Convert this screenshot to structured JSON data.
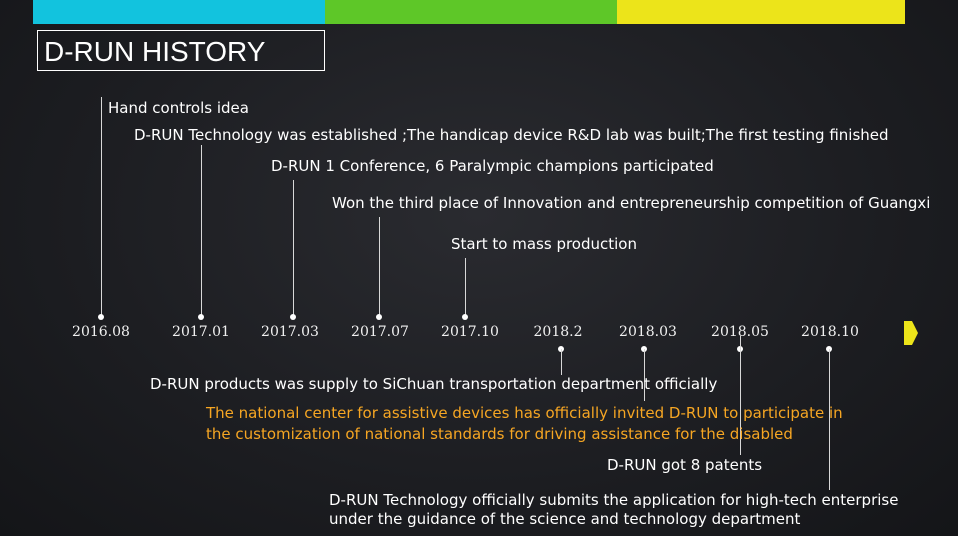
{
  "title": "D-RUN HISTORY",
  "colors": {
    "phase1": "#12c3de",
    "phase2": "#5ec728",
    "phase3": "#ece41a",
    "highlight": "#f6a623"
  },
  "dates": [
    "2016.08",
    "2017.01",
    "2017.03",
    "2017.07",
    "2017.10",
    "2018.2",
    "2018.03",
    "2018.05",
    "2018.10"
  ],
  "events": [
    {
      "date": "2016.08",
      "text": "Hand controls idea"
    },
    {
      "date": "2017.01",
      "text": "D-RUN Technology was established ;The handicap device R&D lab was built;The first testing finished"
    },
    {
      "date": "2017.03",
      "text": "D-RUN 1 Conference, 6 Paralympic champions participated"
    },
    {
      "date": "2017.07",
      "text": "Won the third place of Innovation and entrepreneurship competition of Guangxi"
    },
    {
      "date": "2017.10",
      "text": "Start to mass production"
    },
    {
      "date": "2018.2",
      "text": "D-RUN products was supply to SiChuan transportation department officially"
    },
    {
      "date": "2018.03",
      "text": "The national center for assistive devices has officially invited D-RUN  to participate in",
      "text2": "the customization of national standards for driving assistance for the disabled"
    },
    {
      "date": "2018.05",
      "text": "D-RUN got 8 patents"
    },
    {
      "date": "2018.10",
      "text": "D-RUN Technology officially submits the application for high-tech enterprise",
      "text2": "under the guidance of the science and technology department"
    }
  ]
}
